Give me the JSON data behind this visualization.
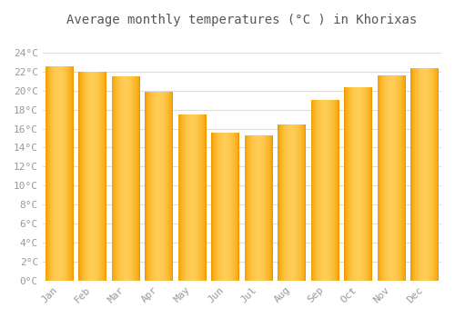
{
  "title": "Average monthly temperatures (°C ) in Khorixas",
  "months": [
    "Jan",
    "Feb",
    "Mar",
    "Apr",
    "May",
    "Jun",
    "Jul",
    "Aug",
    "Sep",
    "Oct",
    "Nov",
    "Dec"
  ],
  "values": [
    22.6,
    22.0,
    21.5,
    19.9,
    17.5,
    15.6,
    15.3,
    16.4,
    19.0,
    20.4,
    21.6,
    22.4
  ],
  "bar_color_left": "#F5A000",
  "bar_color_mid": "#FFCC55",
  "bar_color_right": "#F5A000",
  "ylim": [
    0,
    26
  ],
  "yticks": [
    0,
    2,
    4,
    6,
    8,
    10,
    12,
    14,
    16,
    18,
    20,
    22,
    24
  ],
  "grid_color": "#dddddd",
  "background_color": "#ffffff",
  "title_fontsize": 10,
  "tick_fontsize": 8,
  "bar_width": 0.85
}
